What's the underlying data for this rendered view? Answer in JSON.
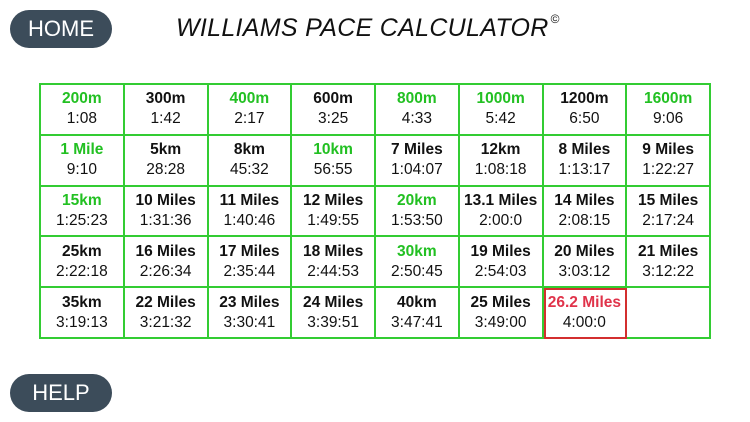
{
  "header": {
    "home_label": "HOME",
    "title": "WILLIAMS PACE CALCULATOR",
    "copyright": "©"
  },
  "footer": {
    "help_label": "HELP"
  },
  "colors": {
    "grid_border": "#33cc33",
    "metric_highlight": "#22c022",
    "target_highlight": "#e0334a",
    "button_bg": "#3c4c5a"
  },
  "cells": [
    {
      "dist": "200m",
      "time": "1:08",
      "style": "metric"
    },
    {
      "dist": "300m",
      "time": "1:42",
      "style": "normal"
    },
    {
      "dist": "400m",
      "time": "2:17",
      "style": "metric"
    },
    {
      "dist": "600m",
      "time": "3:25",
      "style": "normal"
    },
    {
      "dist": "800m",
      "time": "4:33",
      "style": "metric"
    },
    {
      "dist": "1000m",
      "time": "5:42",
      "style": "metric"
    },
    {
      "dist": "1200m",
      "time": "6:50",
      "style": "normal"
    },
    {
      "dist": "1600m",
      "time": "9:06",
      "style": "metric"
    },
    {
      "dist": "1 Mile",
      "time": "9:10",
      "style": "metric"
    },
    {
      "dist": "5km",
      "time": "28:28",
      "style": "normal"
    },
    {
      "dist": "8km",
      "time": "45:32",
      "style": "normal"
    },
    {
      "dist": "10km",
      "time": "56:55",
      "style": "metric"
    },
    {
      "dist": "7 Miles",
      "time": "1:04:07",
      "style": "normal"
    },
    {
      "dist": "12km",
      "time": "1:08:18",
      "style": "normal"
    },
    {
      "dist": "8 Miles",
      "time": "1:13:17",
      "style": "normal"
    },
    {
      "dist": "9 Miles",
      "time": "1:22:27",
      "style": "normal"
    },
    {
      "dist": "15km",
      "time": "1:25:23",
      "style": "metric"
    },
    {
      "dist": "10 Miles",
      "time": "1:31:36",
      "style": "normal"
    },
    {
      "dist": "11 Miles",
      "time": "1:40:46",
      "style": "normal"
    },
    {
      "dist": "12 Miles",
      "time": "1:49:55",
      "style": "normal"
    },
    {
      "dist": "20km",
      "time": "1:53:50",
      "style": "metric"
    },
    {
      "dist": "13.1 Miles",
      "time": "2:00:0",
      "style": "normal"
    },
    {
      "dist": "14 Miles",
      "time": "2:08:15",
      "style": "normal"
    },
    {
      "dist": "15 Miles",
      "time": "2:17:24",
      "style": "normal"
    },
    {
      "dist": "25km",
      "time": "2:22:18",
      "style": "normal"
    },
    {
      "dist": "16 Miles",
      "time": "2:26:34",
      "style": "normal"
    },
    {
      "dist": "17 Miles",
      "time": "2:35:44",
      "style": "normal"
    },
    {
      "dist": "18 Miles",
      "time": "2:44:53",
      "style": "normal"
    },
    {
      "dist": "30km",
      "time": "2:50:45",
      "style": "metric"
    },
    {
      "dist": "19 Miles",
      "time": "2:54:03",
      "style": "normal"
    },
    {
      "dist": "20 Miles",
      "time": "3:03:12",
      "style": "normal"
    },
    {
      "dist": "21 Miles",
      "time": "3:12:22",
      "style": "normal"
    },
    {
      "dist": "35km",
      "time": "3:19:13",
      "style": "normal"
    },
    {
      "dist": "22 Miles",
      "time": "3:21:32",
      "style": "normal"
    },
    {
      "dist": "23 Miles",
      "time": "3:30:41",
      "style": "normal"
    },
    {
      "dist": "24 Miles",
      "time": "3:39:51",
      "style": "normal"
    },
    {
      "dist": "40km",
      "time": "3:47:41",
      "style": "normal"
    },
    {
      "dist": "25 Miles",
      "time": "3:49:00",
      "style": "normal"
    },
    {
      "dist": "26.2 Miles",
      "time": "4:00:0",
      "style": "target"
    },
    {
      "dist": "",
      "time": "",
      "style": "empty"
    }
  ]
}
